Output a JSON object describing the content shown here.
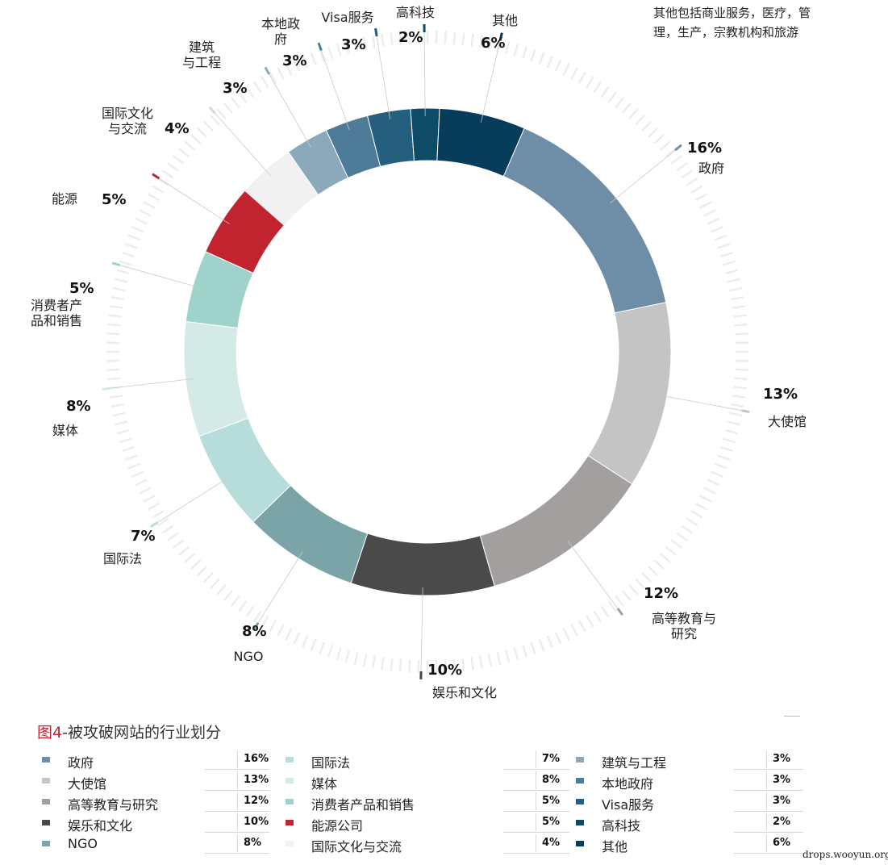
{
  "chart_data": {
    "type": "pie",
    "title": "被攻破网站的行业划分",
    "figure_label": "图4",
    "figure_sep": "-",
    "unit": "%",
    "categories": [
      "政府",
      "大使馆",
      "高等教育与研究",
      "娱乐和文化",
      "NGO",
      "国际法",
      "媒体",
      "消费者产品和销售",
      "能源公司",
      "国际文化与交流",
      "建筑与工程",
      "本地政府",
      "Visa服务",
      "高科技",
      "其他"
    ],
    "values": [
      16,
      13,
      12,
      10,
      8,
      7,
      8,
      5,
      5,
      4,
      3,
      3,
      3,
      2,
      6
    ],
    "colors": [
      "#6e8ea8",
      "#c4c4c4",
      "#a49f9f",
      "#4a4a4a",
      "#7aa4a8",
      "#b6ddd9",
      "#d3eae7",
      "#9ed2cb",
      "#c1232f",
      "#f1f1f1",
      "#8ba9bb",
      "#4e7b97",
      "#245f7e",
      "#0d4b66",
      "#073c5a"
    ],
    "slice_labels": [
      {
        "name": "政府",
        "pct": "16%"
      },
      {
        "name": "大使馆",
        "pct": "13%"
      },
      {
        "name": "高等教育与\n研究",
        "pct": "12%"
      },
      {
        "name": "娱乐和文化",
        "pct": "10%"
      },
      {
        "name": "NGO",
        "pct": "8%"
      },
      {
        "name": "国际法",
        "pct": "7%"
      },
      {
        "name": "媒体",
        "pct": "8%"
      },
      {
        "name": "消费者产\n品和销售",
        "pct": "5%"
      },
      {
        "name": "能源",
        "pct": "5%"
      },
      {
        "name": "国际文化\n与交流",
        "pct": "4%"
      },
      {
        "name": "建筑\n与工程",
        "pct": "3%"
      },
      {
        "name": "本地政\n府",
        "pct": "3%"
      },
      {
        "name": "Visa服务",
        "pct": "3%"
      },
      {
        "name": "高科技",
        "pct": "2%"
      },
      {
        "name": "其他",
        "pct": "6%"
      }
    ],
    "note": "其他包括商业服务，医疗，管理，生产，宗教机构和旅游",
    "legend": [
      {
        "name": "政府",
        "pct": "16%"
      },
      {
        "name": "大使馆",
        "pct": "13%"
      },
      {
        "name": "高等教育与研究",
        "pct": "12%"
      },
      {
        "name": "娱乐和文化",
        "pct": "10%"
      },
      {
        "name": "NGO",
        "pct": "8%"
      },
      {
        "name": "国际法",
        "pct": "7%"
      },
      {
        "name": "媒体",
        "pct": "8%"
      },
      {
        "name": "消费者产品和销售",
        "pct": "5%"
      },
      {
        "name": "能源公司",
        "pct": "5%"
      },
      {
        "name": "国际文化与交流",
        "pct": "4%"
      },
      {
        "name": "建筑与工程",
        "pct": "3%"
      },
      {
        "name": "本地政府",
        "pct": "3%"
      },
      {
        "name": "Visa服务",
        "pct": "3%"
      },
      {
        "name": "高科技",
        "pct": "2%"
      },
      {
        "name": "其他",
        "pct": "6%"
      }
    ]
  },
  "watermark": "drops.wooyun.org"
}
